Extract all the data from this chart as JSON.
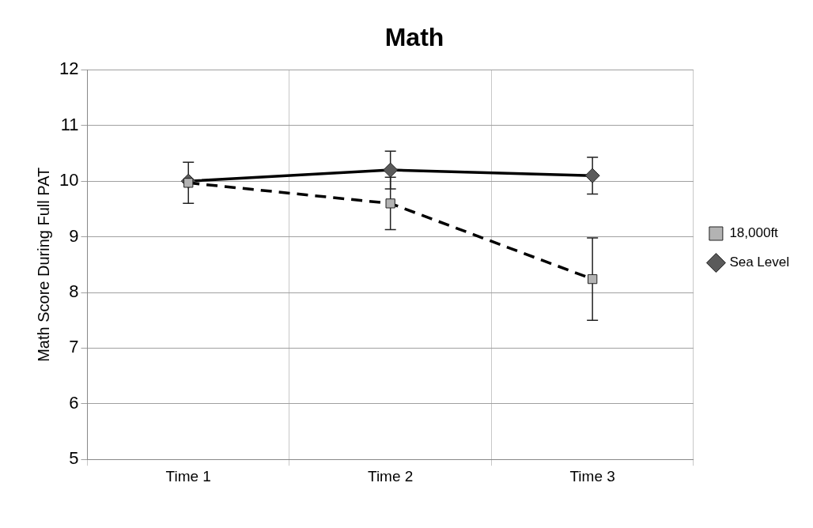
{
  "chart_data": {
    "type": "line",
    "title": "Math",
    "ylabel": "Math Score During Full PAT",
    "categories": [
      "Time 1",
      "Time 2",
      "Time 3"
    ],
    "series": [
      {
        "name": "Sea Level",
        "color": "#000000",
        "marker": "diamond",
        "line_style": "solid",
        "values": [
          10.0,
          10.2,
          10.1
        ],
        "errors": [
          null,
          0.34,
          0.33
        ]
      },
      {
        "name": "18,000ft",
        "color": "#000000",
        "marker": "square",
        "line_style": "dashed",
        "values": [
          9.97,
          9.6,
          8.24
        ],
        "errors": [
          0.37,
          0.47,
          0.74
        ]
      }
    ],
    "ylim": [
      5,
      12
    ],
    "yticks": [
      5,
      6,
      7,
      8,
      9,
      10,
      11,
      12
    ],
    "grid": true,
    "legend": "right"
  }
}
